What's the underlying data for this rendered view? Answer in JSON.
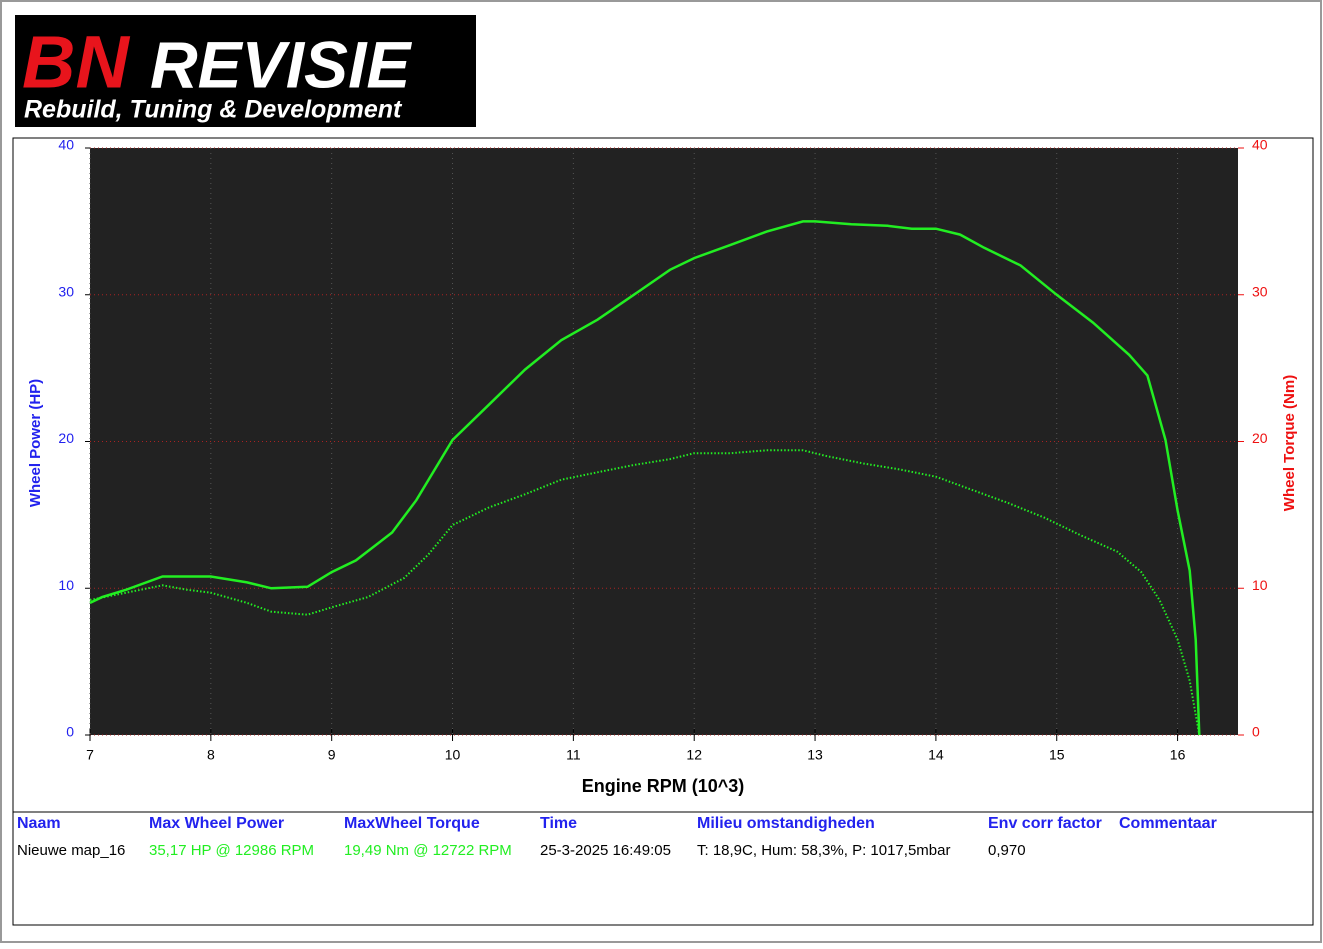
{
  "logo": {
    "brand_red": "BN",
    "brand": "REVISIE",
    "tagline": "Rebuild, Tuning & Development"
  },
  "chart_data": {
    "type": "line",
    "x_label": "Engine RPM (10^3)",
    "y_label": "Wheel Power (HP)",
    "y2_label": "Wheel Torque (Nm)",
    "xlim": [
      7,
      16.5
    ],
    "xticks": [
      7,
      8,
      9,
      10,
      11,
      12,
      13,
      14,
      15,
      16
    ],
    "ylim": [
      0,
      40
    ],
    "yticks": [
      0,
      10,
      20,
      30,
      40
    ],
    "y2lim": [
      0,
      40
    ],
    "y2ticks": [
      0,
      10,
      20,
      30,
      40
    ],
    "grid": true,
    "background": "#222222",
    "series": [
      {
        "color": "#22ee22",
        "dash": "solid",
        "x": [
          7.0,
          7.1,
          7.3,
          7.6,
          7.8,
          8.0,
          8.3,
          8.5,
          8.8,
          9.0,
          9.2,
          9.5,
          9.7,
          10.0,
          10.3,
          10.6,
          10.9,
          11.2,
          11.5,
          11.8,
          12.0,
          12.3,
          12.6,
          12.9,
          13.0,
          13.3,
          13.6,
          13.8,
          14.0,
          14.2,
          14.4,
          14.7,
          15.0,
          15.3,
          15.6,
          15.75,
          15.9,
          16.0,
          16.1,
          16.15,
          16.18
        ],
        "values": [
          9.0,
          9.4,
          9.9,
          10.8,
          10.8,
          10.8,
          10.4,
          10.0,
          10.1,
          11.1,
          11.9,
          13.8,
          16.0,
          20.1,
          22.5,
          24.9,
          26.9,
          28.3,
          30.0,
          31.7,
          32.5,
          33.4,
          34.3,
          35.0,
          35.0,
          34.8,
          34.7,
          34.5,
          34.5,
          34.1,
          33.2,
          32.0,
          30.0,
          28.1,
          25.9,
          24.5,
          20.1,
          15.3,
          11.2,
          6.5,
          0
        ]
      },
      {
        "color": "#22ee22",
        "dash": "dotted",
        "axis": "y2",
        "x": [
          7.0,
          7.3,
          7.6,
          7.8,
          8.0,
          8.3,
          8.5,
          8.8,
          9.0,
          9.3,
          9.6,
          9.8,
          10.0,
          10.3,
          10.6,
          10.9,
          11.2,
          11.5,
          11.8,
          12.0,
          12.3,
          12.6,
          12.9,
          13.1,
          13.4,
          13.7,
          14.0,
          14.3,
          14.6,
          14.9,
          15.2,
          15.5,
          15.7,
          15.85,
          16.0,
          16.1,
          16.18
        ],
        "values": [
          9.2,
          9.7,
          10.2,
          9.9,
          9.7,
          9.0,
          8.4,
          8.2,
          8.7,
          9.4,
          10.7,
          12.3,
          14.3,
          15.5,
          16.4,
          17.4,
          17.9,
          18.4,
          18.8,
          19.2,
          19.2,
          19.4,
          19.4,
          19.0,
          18.5,
          18.1,
          17.6,
          16.7,
          15.8,
          14.8,
          13.6,
          12.5,
          11.1,
          9.2,
          6.5,
          3.7,
          0
        ]
      }
    ]
  },
  "table": {
    "header": [
      "Naam",
      "Max Wheel Power",
      "MaxWheel Torque",
      "Time",
      "Milieu omstandigheden",
      "Env corr factor",
      "Commentaar"
    ],
    "rows": [
      [
        "Nieuwe map_16",
        "35,17 HP @ 12986 RPM",
        "19,49 Nm @ 12722 RPM",
        "25-3-2025 16:49:05",
        "T: 18,9C, Hum: 58,3%, P: 1017,5mbar",
        "0,970"
      ]
    ]
  }
}
